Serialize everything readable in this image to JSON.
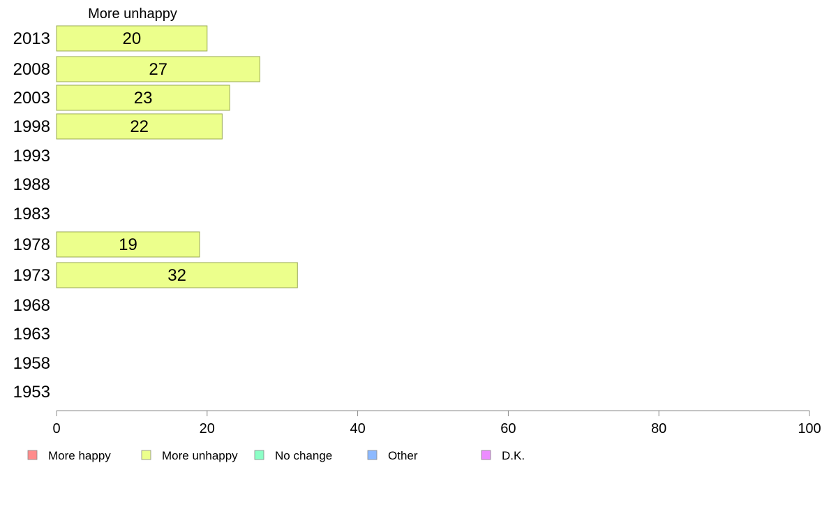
{
  "chart_data": {
    "type": "bar",
    "orientation": "horizontal",
    "title": "More unhappy",
    "categories": [
      "2013",
      "2008",
      "2003",
      "1998",
      "1993",
      "1988",
      "1983",
      "1978",
      "1973",
      "1968",
      "1963",
      "1958",
      "1953"
    ],
    "series": [
      {
        "name": "More unhappy",
        "color": "#ecff8c",
        "values": [
          20,
          27,
          23,
          22,
          null,
          null,
          null,
          19,
          32,
          null,
          null,
          null,
          null
        ]
      }
    ],
    "xlim": [
      0,
      100
    ],
    "xticks": [
      0,
      20,
      40,
      60,
      80,
      100
    ],
    "grid": false,
    "legend": {
      "position": "bottom-left",
      "items": [
        {
          "label": "More happy",
          "color": "#ff8c8c"
        },
        {
          "label": "More unhappy",
          "color": "#ecff8c"
        },
        {
          "label": "No change",
          "color": "#8cffc6"
        },
        {
          "label": "Other",
          "color": "#8cb9ff"
        },
        {
          "label": "D.K.",
          "color": "#ec8cff"
        }
      ]
    }
  }
}
